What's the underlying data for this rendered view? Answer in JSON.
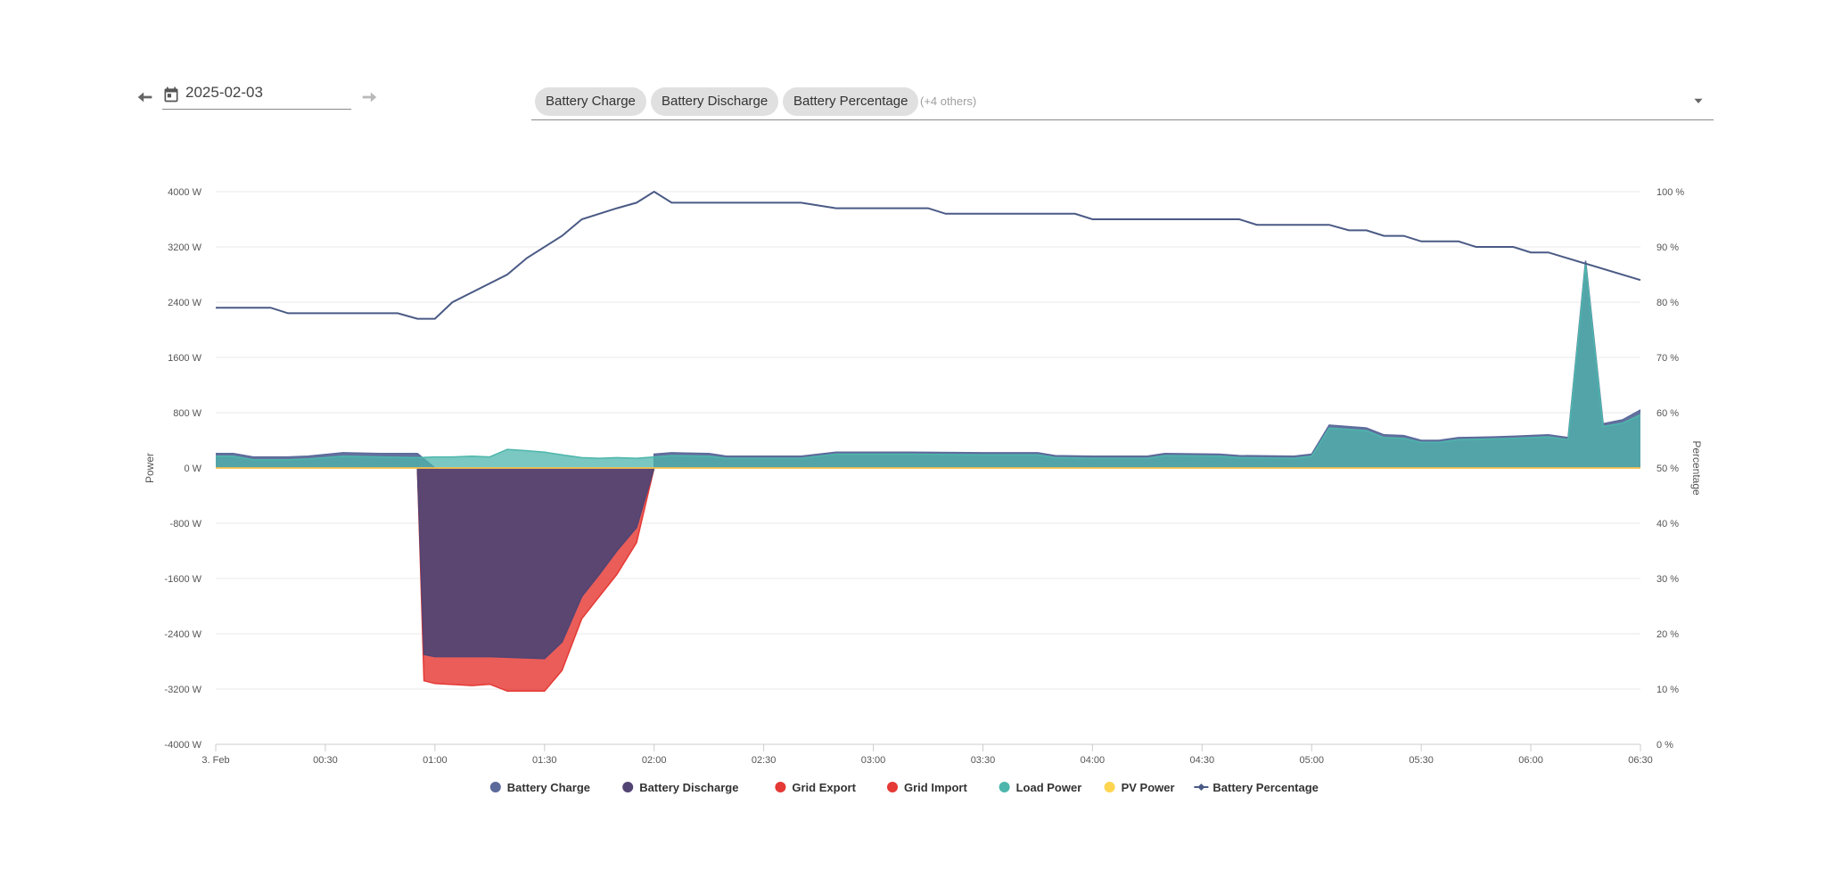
{
  "date_picker": {
    "date": "2025-02-03",
    "prev_icon": "arrow-left-icon",
    "next_icon": "arrow-right-icon",
    "calendar_icon": "calendar-icon"
  },
  "entity_picker": {
    "chips": [
      "Battery Charge",
      "Battery Discharge",
      "Battery Percentage"
    ],
    "others_label": "(+4 others)",
    "dropdown_icon": "chevron-down-icon"
  },
  "chart_data": {
    "type": "area",
    "y_left": {
      "title": "Power",
      "min": -4000,
      "max": 4000,
      "ticks": [
        "4000 W",
        "3200 W",
        "2400 W",
        "1600 W",
        "800 W",
        "0 W",
        "-800 W",
        "-1600 W",
        "-2400 W",
        "-3200 W",
        "-4000 W"
      ]
    },
    "y_right": {
      "title": "Percentage",
      "min": 0,
      "max": 100,
      "ticks": [
        "100 %",
        "90 %",
        "80 %",
        "70 %",
        "60 %",
        "50 %",
        "40 %",
        "30 %",
        "20 %",
        "10 %",
        "0 %"
      ]
    },
    "x_range_hours": [
      0,
      6.5
    ],
    "x_ticks": [
      "3. Feb",
      "00:30",
      "01:00",
      "01:30",
      "02:00",
      "02:30",
      "03:00",
      "03:30",
      "04:00",
      "04:30",
      "05:00",
      "05:30",
      "06:00",
      "06:30"
    ],
    "grid": true,
    "legend_position": "bottom",
    "series": [
      {
        "name": "Battery Charge",
        "color": "#5b6a9a",
        "points": [
          [
            0,
            210
          ],
          [
            0.08,
            210
          ],
          [
            0.17,
            160
          ],
          [
            0.33,
            160
          ],
          [
            0.42,
            170
          ],
          [
            0.58,
            220
          ],
          [
            0.75,
            210
          ],
          [
            0.92,
            210
          ],
          [
            1.0,
            0
          ],
          [
            2.0,
            0
          ],
          [
            2.0,
            200
          ],
          [
            2.08,
            220
          ],
          [
            2.25,
            210
          ],
          [
            2.33,
            170
          ],
          [
            2.58,
            170
          ],
          [
            2.67,
            170
          ],
          [
            2.75,
            200
          ],
          [
            2.83,
            230
          ],
          [
            3.0,
            230
          ],
          [
            3.17,
            230
          ],
          [
            3.5,
            220
          ],
          [
            3.75,
            220
          ],
          [
            3.83,
            180
          ],
          [
            4.0,
            170
          ],
          [
            4.25,
            170
          ],
          [
            4.33,
            210
          ],
          [
            4.58,
            200
          ],
          [
            4.67,
            180
          ],
          [
            4.92,
            170
          ],
          [
            5.0,
            200
          ],
          [
            5.08,
            620
          ],
          [
            5.25,
            580
          ],
          [
            5.33,
            480
          ],
          [
            5.42,
            470
          ],
          [
            5.5,
            400
          ],
          [
            5.58,
            400
          ],
          [
            5.67,
            440
          ],
          [
            5.83,
            450
          ],
          [
            5.92,
            460
          ],
          [
            6.08,
            480
          ],
          [
            6.17,
            440
          ],
          [
            6.25,
            3000
          ],
          [
            6.33,
            640
          ],
          [
            6.42,
            700
          ],
          [
            6.5,
            840
          ]
        ]
      },
      {
        "name": "Battery Discharge",
        "color": "#524473",
        "points": [
          [
            0.92,
            0
          ],
          [
            0.95,
            -2700
          ],
          [
            1.0,
            -2730
          ],
          [
            1.25,
            -2730
          ],
          [
            1.5,
            -2760
          ],
          [
            1.58,
            -2520
          ],
          [
            1.67,
            -1860
          ],
          [
            1.75,
            -1540
          ],
          [
            1.83,
            -1200
          ],
          [
            1.92,
            -860
          ],
          [
            2.0,
            0
          ]
        ]
      },
      {
        "name": "Grid Export",
        "color": "#e53935",
        "points": [
          [
            0,
            0
          ],
          [
            6.5,
            0
          ]
        ]
      },
      {
        "name": "Grid Import",
        "color": "#e53935",
        "points": [
          [
            0.92,
            0
          ],
          [
            0.95,
            -3080
          ],
          [
            1.0,
            -3120
          ],
          [
            1.17,
            -3150
          ],
          [
            1.25,
            -3130
          ],
          [
            1.33,
            -3230
          ],
          [
            1.42,
            -3230
          ],
          [
            1.5,
            -3230
          ],
          [
            1.58,
            -2930
          ],
          [
            1.67,
            -2180
          ],
          [
            1.75,
            -1860
          ],
          [
            1.83,
            -1540
          ],
          [
            1.92,
            -1080
          ],
          [
            2.0,
            0
          ]
        ]
      },
      {
        "name": "Load Power",
        "color": "#4db6ac",
        "points": [
          [
            0,
            170
          ],
          [
            0.08,
            170
          ],
          [
            0.17,
            120
          ],
          [
            0.33,
            120
          ],
          [
            0.42,
            130
          ],
          [
            0.58,
            170
          ],
          [
            0.75,
            160
          ],
          [
            0.92,
            150
          ],
          [
            1.0,
            160
          ],
          [
            1.08,
            160
          ],
          [
            1.17,
            170
          ],
          [
            1.25,
            160
          ],
          [
            1.33,
            270
          ],
          [
            1.42,
            250
          ],
          [
            1.5,
            230
          ],
          [
            1.58,
            190
          ],
          [
            1.67,
            150
          ],
          [
            1.75,
            140
          ],
          [
            1.83,
            150
          ],
          [
            1.92,
            140
          ],
          [
            2.0,
            160
          ],
          [
            2.08,
            180
          ],
          [
            2.25,
            170
          ],
          [
            2.33,
            140
          ],
          [
            2.58,
            140
          ],
          [
            2.67,
            140
          ],
          [
            2.75,
            170
          ],
          [
            2.83,
            200
          ],
          [
            3.0,
            200
          ],
          [
            3.17,
            200
          ],
          [
            3.5,
            190
          ],
          [
            3.75,
            190
          ],
          [
            3.83,
            150
          ],
          [
            4.0,
            140
          ],
          [
            4.25,
            140
          ],
          [
            4.33,
            180
          ],
          [
            4.58,
            170
          ],
          [
            4.67,
            150
          ],
          [
            4.92,
            140
          ],
          [
            5.0,
            170
          ],
          [
            5.08,
            580
          ],
          [
            5.25,
            540
          ],
          [
            5.33,
            440
          ],
          [
            5.42,
            430
          ],
          [
            5.5,
            370
          ],
          [
            5.58,
            370
          ],
          [
            5.67,
            410
          ],
          [
            5.83,
            420
          ],
          [
            5.92,
            430
          ],
          [
            6.08,
            450
          ],
          [
            6.17,
            410
          ],
          [
            6.25,
            2950
          ],
          [
            6.33,
            600
          ],
          [
            6.42,
            650
          ],
          [
            6.5,
            770
          ]
        ]
      },
      {
        "name": "PV Power",
        "color": "#ffd54f",
        "points": [
          [
            0,
            0
          ],
          [
            6.5,
            0
          ]
        ]
      },
      {
        "name": "Battery Percentage",
        "color": "#4a5a85",
        "axis": "right",
        "points": [
          [
            0,
            79
          ],
          [
            0.25,
            79
          ],
          [
            0.33,
            78
          ],
          [
            0.83,
            78
          ],
          [
            0.92,
            77
          ],
          [
            1.0,
            77
          ],
          [
            1.08,
            80
          ],
          [
            1.33,
            85
          ],
          [
            1.42,
            88
          ],
          [
            1.58,
            92
          ],
          [
            1.67,
            95
          ],
          [
            1.83,
            97
          ],
          [
            1.92,
            98
          ],
          [
            2.0,
            100
          ],
          [
            2.08,
            98
          ],
          [
            2.67,
            98
          ],
          [
            2.83,
            97
          ],
          [
            3.25,
            97
          ],
          [
            3.33,
            96
          ],
          [
            3.92,
            96
          ],
          [
            4.0,
            95
          ],
          [
            4.67,
            95
          ],
          [
            4.75,
            94
          ],
          [
            5.08,
            94
          ],
          [
            5.17,
            93
          ],
          [
            5.25,
            93
          ],
          [
            5.33,
            92
          ],
          [
            5.42,
            92
          ],
          [
            5.5,
            91
          ],
          [
            5.67,
            91
          ],
          [
            5.75,
            90
          ],
          [
            5.92,
            90
          ],
          [
            6.0,
            89
          ],
          [
            6.08,
            89
          ],
          [
            6.5,
            84
          ]
        ]
      }
    ]
  }
}
